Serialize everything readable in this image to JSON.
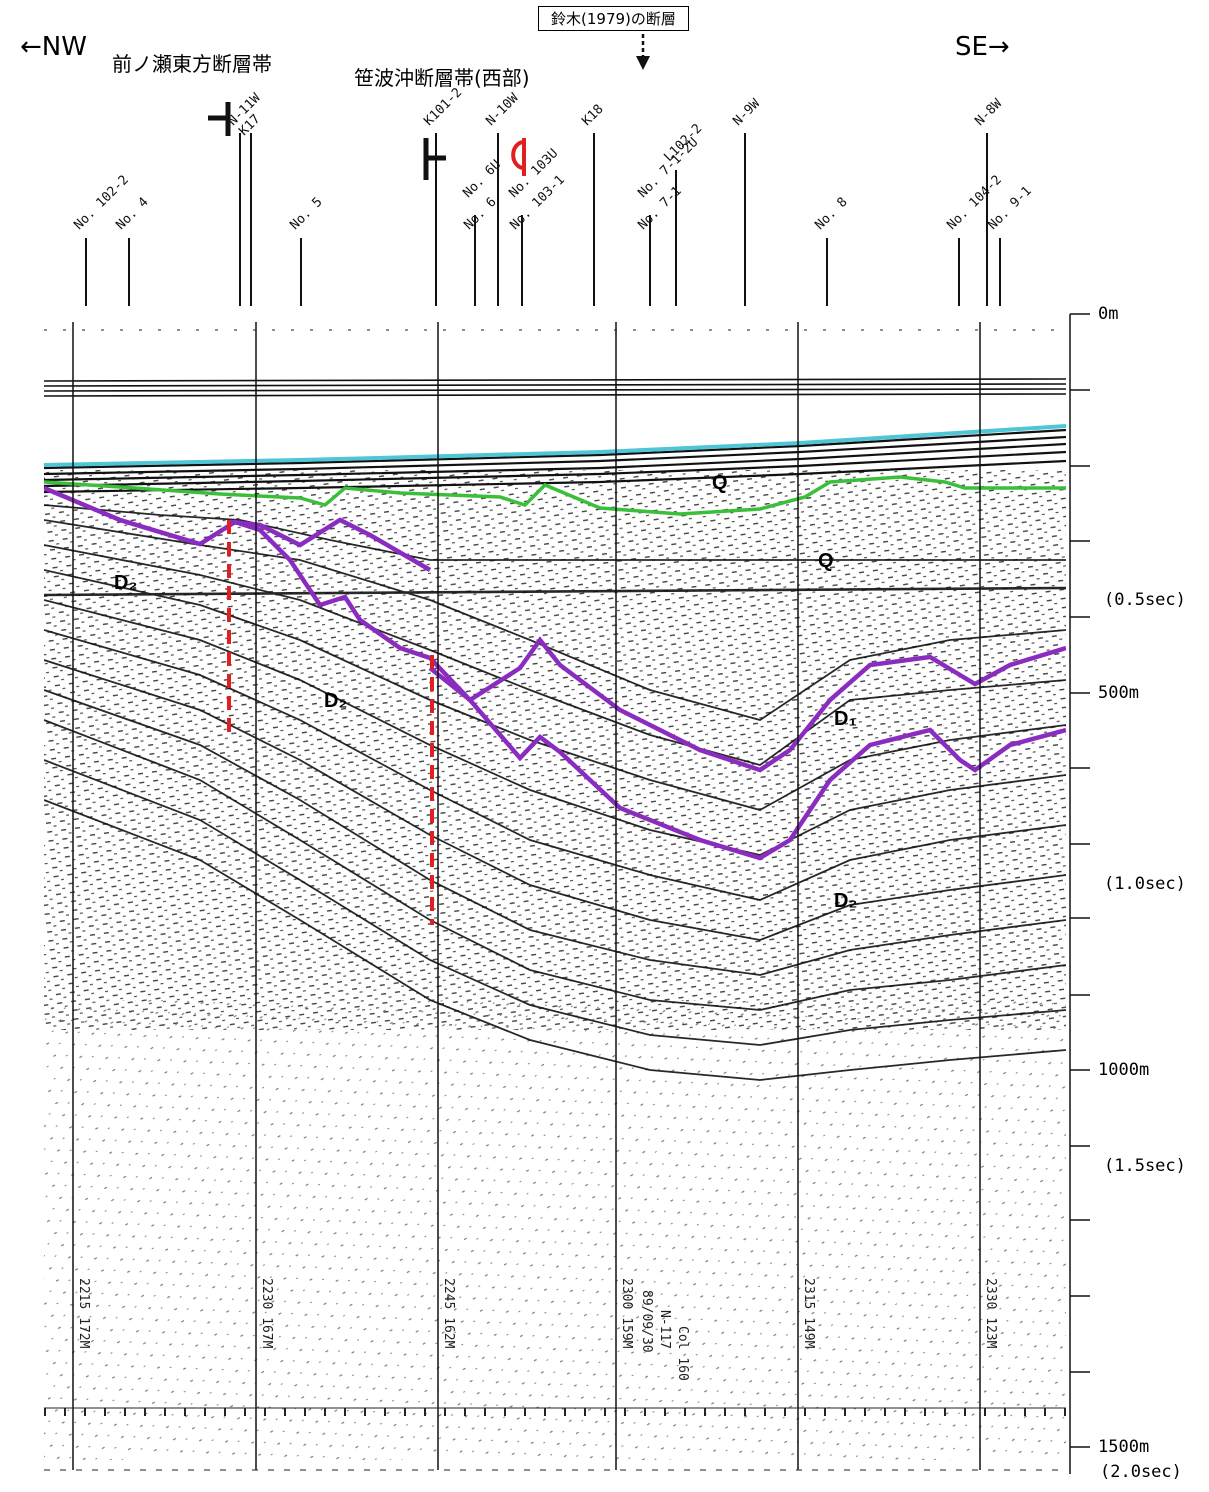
{
  "header": {
    "direction_left": "←NW",
    "direction_right": "SE→",
    "fault_zone_west": "前ノ瀬東方断層帯",
    "fault_zone_sasanami": "笹波沖断層帯(西部)",
    "suzuki_fault": "鈴木(1979)の断層"
  },
  "wells": [
    {
      "label": "No. 102-2"
    },
    {
      "label": "No. 4"
    },
    {
      "label": "N-11W"
    },
    {
      "label": "K17"
    },
    {
      "label": "No. 5"
    },
    {
      "label": "K101-2"
    },
    {
      "label": "No. 6U"
    },
    {
      "label": "No. 6"
    },
    {
      "label": "N-10W"
    },
    {
      "label": "No. 103U"
    },
    {
      "label": "No. 103-1"
    },
    {
      "label": "K18"
    },
    {
      "label": "No. 7-1"
    },
    {
      "label": "No. 7-1-2U"
    },
    {
      "label": "L102-2"
    },
    {
      "label": "N-9W"
    },
    {
      "label": "No. 8"
    },
    {
      "label": "N-8W"
    },
    {
      "label": "No. 104-2"
    },
    {
      "label": "No. 9-1"
    }
  ],
  "units": [
    {
      "label": "Q"
    },
    {
      "label": "Q"
    },
    {
      "label": "D₂"
    },
    {
      "label": "D₂"
    },
    {
      "label": "D₁"
    },
    {
      "label": "D₂"
    }
  ],
  "depth_scale": [
    {
      "label": "0m"
    },
    {
      "label": "(0.5sec)"
    },
    {
      "label": "500m"
    },
    {
      "label": "(1.0sec)"
    },
    {
      "label": "1000m"
    },
    {
      "label": "(1.5sec)"
    },
    {
      "label": "1500m"
    },
    {
      "label": "(2.0sec)"
    }
  ],
  "record_stamps": [
    {
      "label": "2215 172M"
    },
    {
      "label": "2230 167M"
    },
    {
      "label": "2245 162M"
    },
    {
      "label": "2300 159M"
    },
    {
      "label": "89/09/30"
    },
    {
      "label": "N-117"
    },
    {
      "label": "Col 160"
    },
    {
      "label": "2315 149M"
    },
    {
      "label": "2330 123M"
    }
  ],
  "colors": {
    "seafloor": "#4fc6d6",
    "q_base": "#3bbf3b",
    "d1_horizon": "#8a2cc0",
    "fault": "#e02020",
    "reflector": "#111111"
  }
}
